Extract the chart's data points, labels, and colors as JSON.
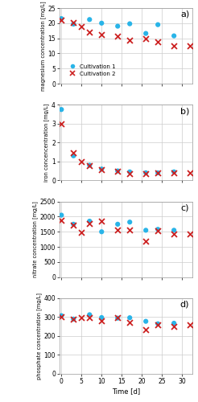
{
  "panel_a": {
    "label": "a)",
    "ylabel": "magnesium concentration [mg/L]",
    "ylim": [
      0,
      25
    ],
    "yticks": [
      0,
      5,
      10,
      15,
      20,
      25
    ],
    "cult1_x": [
      0,
      3,
      7,
      10,
      14,
      17,
      21,
      24,
      28
    ],
    "cult1_y": [
      21.5,
      19.7,
      21.2,
      20.0,
      19.0,
      19.8,
      16.6,
      19.5,
      15.8
    ],
    "cult2_x": [
      0,
      3,
      5,
      7,
      10,
      14,
      17,
      21,
      24,
      28,
      32
    ],
    "cult2_y": [
      21.0,
      20.2,
      19.0,
      17.0,
      16.3,
      15.6,
      14.4,
      15.0,
      13.8,
      12.4,
      12.4
    ]
  },
  "panel_b": {
    "label": "b)",
    "ylabel": "iron concencentration [mg/L]",
    "ylim": [
      0,
      4
    ],
    "yticks": [
      0,
      1,
      2,
      3,
      4
    ],
    "cult1_x": [
      0,
      3,
      7,
      10,
      14,
      17,
      21,
      24,
      28
    ],
    "cult1_y": [
      3.75,
      1.3,
      0.8,
      0.6,
      0.5,
      0.45,
      0.4,
      0.4,
      0.45
    ],
    "cult2_x": [
      0,
      3,
      5,
      7,
      10,
      14,
      17,
      21,
      24,
      28,
      32
    ],
    "cult2_y": [
      3.0,
      1.45,
      1.0,
      0.8,
      0.55,
      0.5,
      0.35,
      0.35,
      0.4,
      0.4,
      0.4
    ]
  },
  "panel_c": {
    "label": "c)",
    "ylabel": "nitrate concentration [mg/L]",
    "ylim": [
      0,
      2500
    ],
    "yticks": [
      0,
      500,
      1000,
      1500,
      2000,
      2500
    ],
    "cult1_x": [
      0,
      3,
      7,
      10,
      14,
      17,
      21,
      24,
      28
    ],
    "cult1_y": [
      2050,
      1750,
      1850,
      1500,
      1750,
      1820,
      1550,
      1580,
      1550
    ],
    "cult2_x": [
      0,
      3,
      5,
      7,
      10,
      14,
      17,
      21,
      24,
      28,
      32
    ],
    "cult2_y": [
      1880,
      1720,
      1480,
      1760,
      1840,
      1560,
      1560,
      1200,
      1540,
      1420,
      1420
    ]
  },
  "panel_d": {
    "label": "d)",
    "ylabel": "phosphate concentration [mg/L]",
    "ylim": [
      0,
      400
    ],
    "yticks": [
      0,
      100,
      200,
      300,
      400
    ],
    "cult1_x": [
      0,
      3,
      7,
      10,
      14,
      17,
      21,
      24,
      28
    ],
    "cult1_y": [
      308,
      290,
      313,
      298,
      295,
      297,
      278,
      265,
      268
    ],
    "cult2_x": [
      0,
      3,
      5,
      7,
      10,
      14,
      17,
      21,
      24,
      28,
      32
    ],
    "cult2_y": [
      300,
      288,
      298,
      296,
      279,
      299,
      274,
      232,
      258,
      252,
      258
    ]
  },
  "xlim": [
    -0.5,
    32.5
  ],
  "xticks": [
    0,
    5,
    10,
    15,
    20,
    25,
    30
  ],
  "xlabel": "Time [d]",
  "cult1_color": "#29b4e8",
  "cult2_color": "#cc2222",
  "cult1_marker": "o",
  "cult2_marker": "x",
  "legend_labels": [
    "Cultivation 1",
    "Cultivation 2"
  ],
  "grid_color": "#cccccc",
  "bg_color": "#ffffff"
}
